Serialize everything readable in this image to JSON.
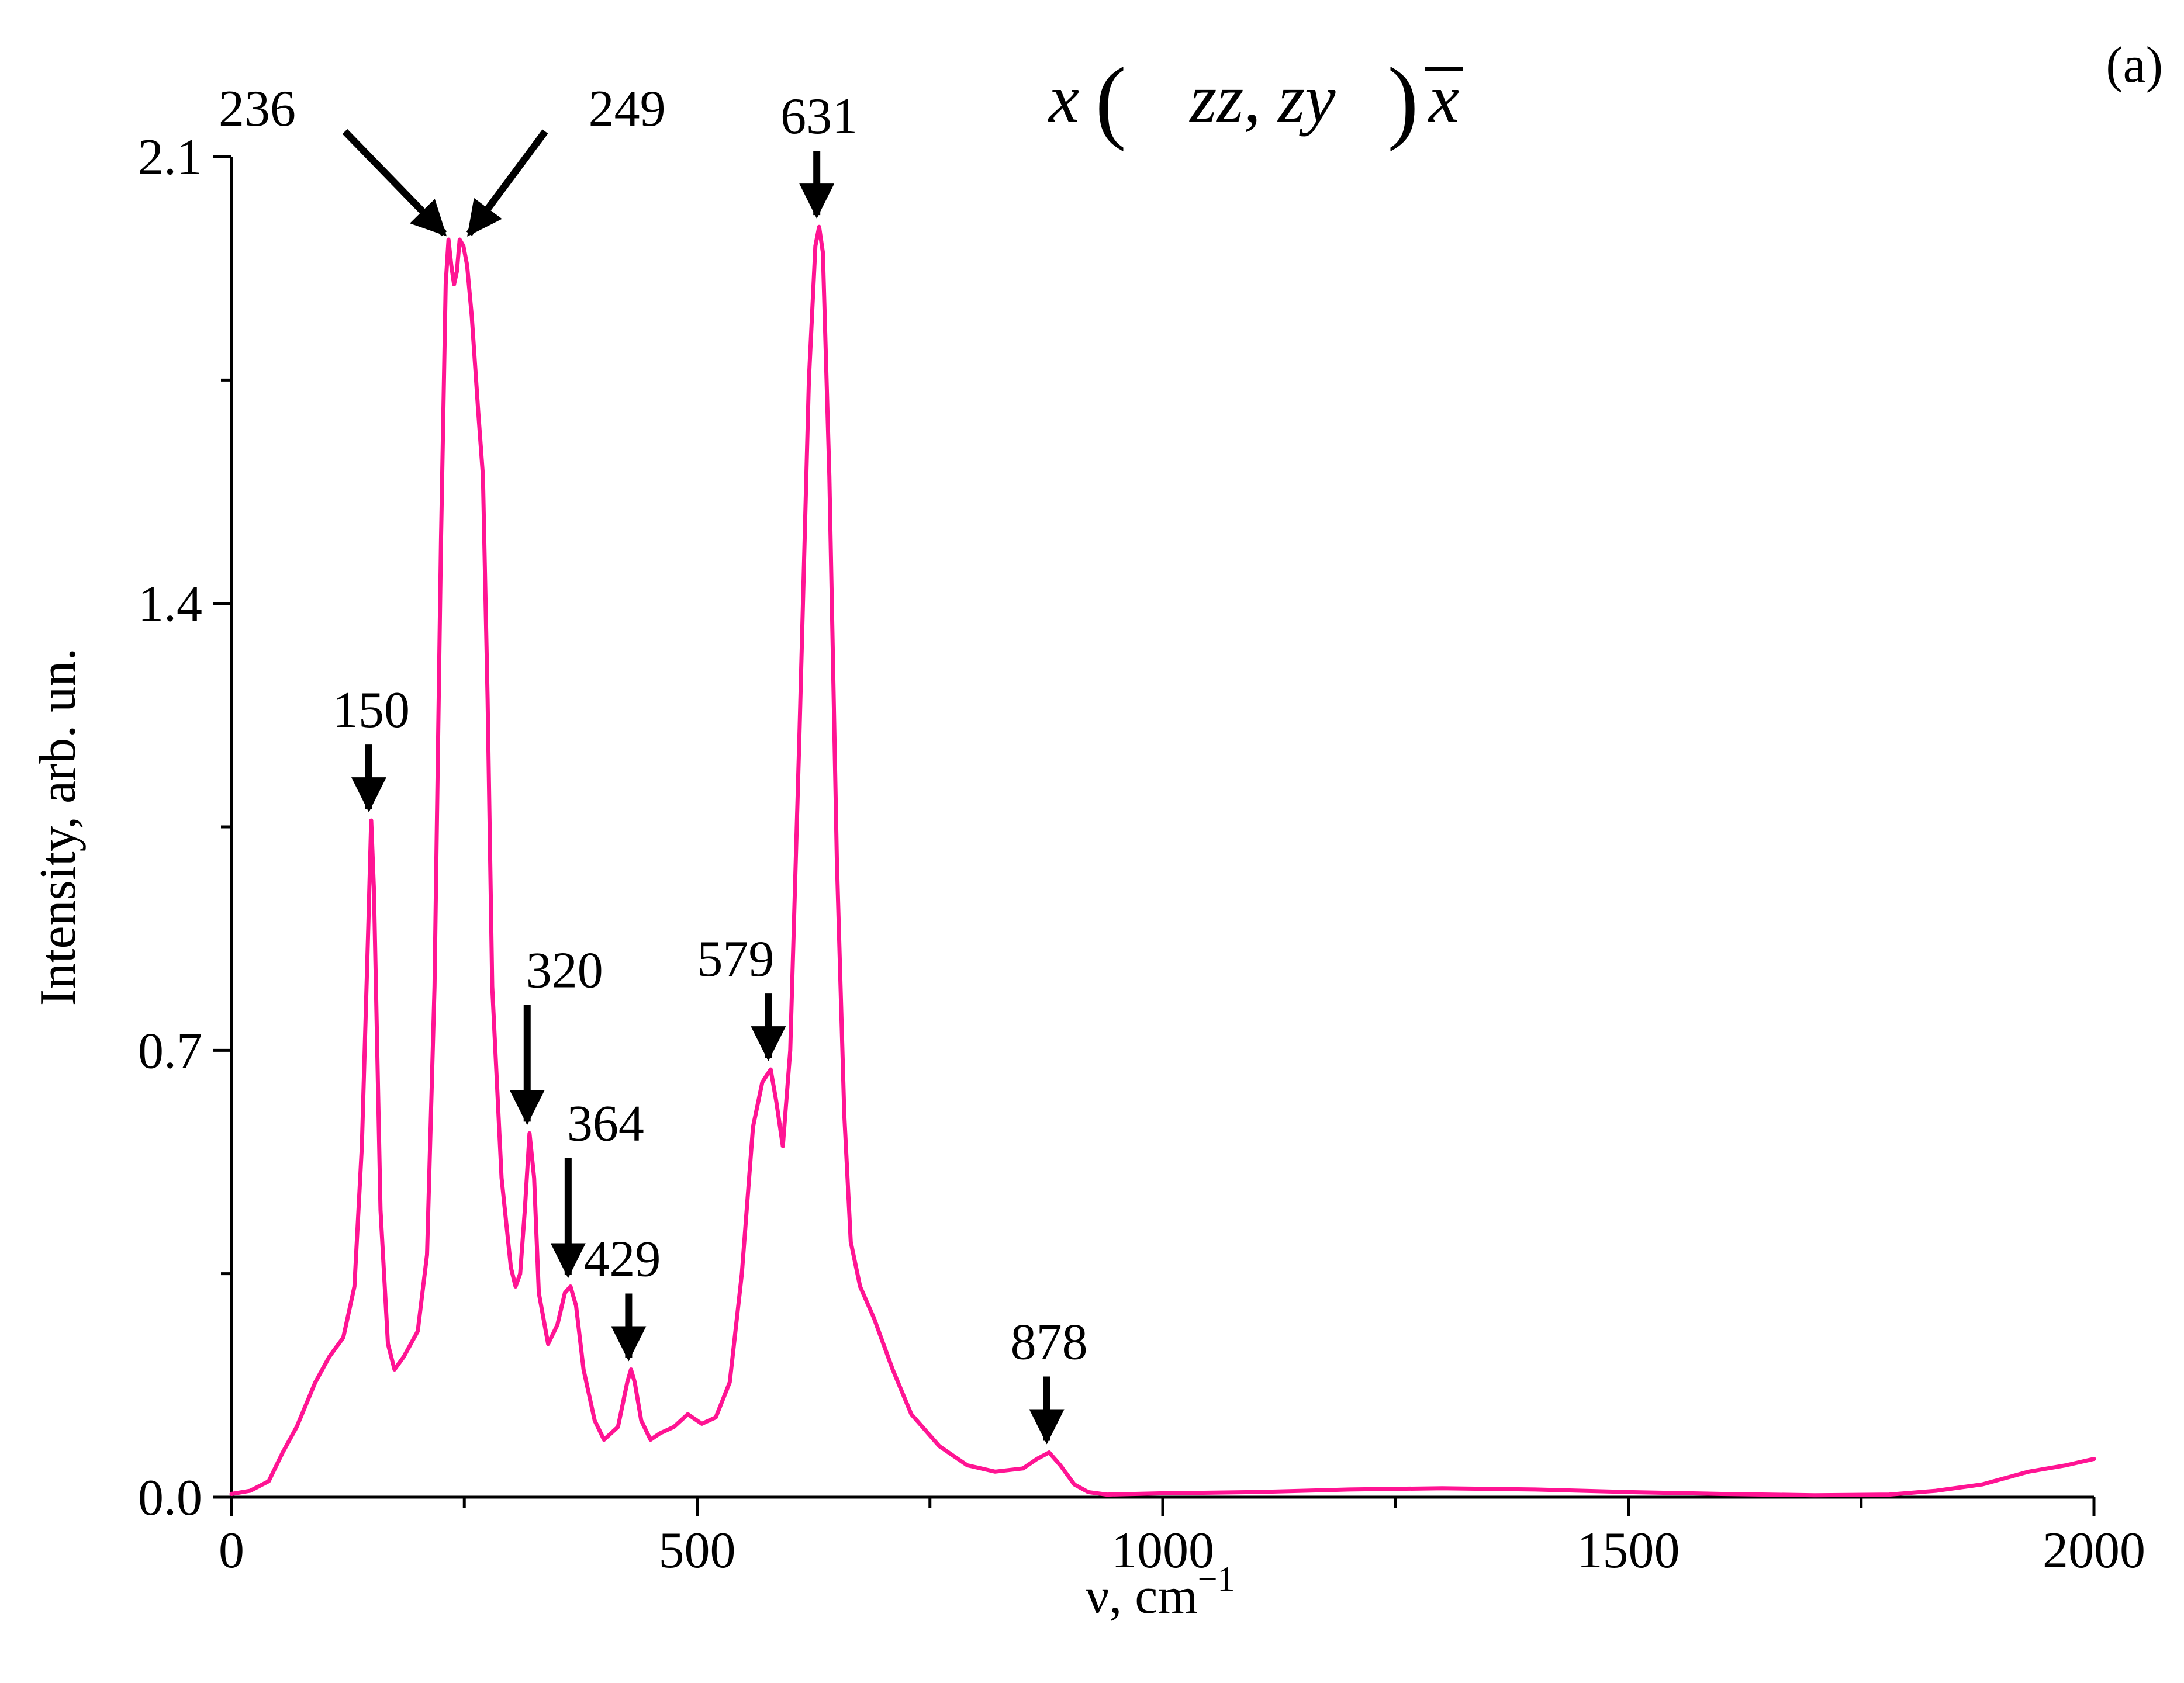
{
  "chart_data": {
    "type": "line",
    "title": "x(zz, zy)x",
    "title_parts": {
      "pre": "x",
      "open": "(",
      "mid": "zz, zy",
      "close": ")",
      "post": "x"
    },
    "panel_label": "(a)",
    "xlabel": "ν, cm",
    "xlabel_sup": "−1",
    "ylabel": "Intensity, arb. un.",
    "xlim": [
      0,
      2000
    ],
    "ylim": [
      0,
      2.1
    ],
    "xticks": [
      0,
      500,
      1000,
      1500,
      2000
    ],
    "xtick_labels": [
      "0",
      "500",
      "1000",
      "1500",
      "2000"
    ],
    "yticks": [
      0,
      0.7,
      1.4,
      2.1
    ],
    "ytick_labels": [
      "0.0",
      "0.7",
      "1.4",
      "2.1"
    ],
    "grid": false,
    "line_color": "#ff1493",
    "series": [
      {
        "x": [
          0,
          20,
          40,
          55,
          70,
          90,
          105,
          120,
          132,
          140,
          147,
          150,
          153,
          160,
          168,
          175,
          185,
          200,
          210,
          218,
          225,
          230,
          233,
          236,
          239,
          242,
          245,
          249,
          253,
          258,
          265,
          270,
          275,
          280,
          290,
          300,
          305,
          310,
          315,
          320,
          325,
          330,
          340,
          350,
          358,
          364,
          370,
          378,
          390,
          400,
          415,
          425,
          429,
          433,
          440,
          450,
          460,
          475,
          490,
          505,
          520,
          535,
          548,
          560,
          570,
          579,
          585,
          592,
          600,
          610,
          620,
          627,
          631,
          635,
          642,
          650,
          658,
          665,
          675,
          690,
          710,
          730,
          760,
          790,
          820,
          850,
          865,
          878,
          890,
          905,
          920,
          940,
          1000,
          1100,
          1200,
          1300,
          1400,
          1500,
          1600,
          1700,
          1780,
          1830,
          1880,
          1930,
          1970,
          2000
        ],
        "y": [
          0.005,
          0.01,
          0.025,
          0.07,
          0.11,
          0.18,
          0.22,
          0.25,
          0.33,
          0.55,
          0.9,
          1.06,
          0.95,
          0.45,
          0.24,
          0.2,
          0.22,
          0.26,
          0.38,
          0.8,
          1.5,
          1.9,
          1.97,
          1.93,
          1.9,
          1.92,
          1.97,
          1.96,
          1.93,
          1.85,
          1.7,
          1.6,
          1.25,
          0.8,
          0.5,
          0.36,
          0.33,
          0.35,
          0.45,
          0.57,
          0.5,
          0.32,
          0.24,
          0.27,
          0.32,
          0.33,
          0.3,
          0.2,
          0.12,
          0.09,
          0.11,
          0.18,
          0.2,
          0.18,
          0.12,
          0.09,
          0.1,
          0.11,
          0.13,
          0.115,
          0.125,
          0.18,
          0.35,
          0.58,
          0.65,
          0.67,
          0.62,
          0.55,
          0.7,
          1.2,
          1.75,
          1.96,
          1.99,
          1.95,
          1.6,
          1.0,
          0.6,
          0.4,
          0.33,
          0.28,
          0.2,
          0.13,
          0.08,
          0.05,
          0.04,
          0.045,
          0.06,
          0.07,
          0.05,
          0.02,
          0.008,
          0.004,
          0.006,
          0.008,
          0.012,
          0.014,
          0.012,
          0.008,
          0.005,
          0.003,
          0.004,
          0.01,
          0.02,
          0.04,
          0.05,
          0.06
        ]
      }
    ],
    "annotations": [
      {
        "label": "150",
        "x": 150,
        "y": 1.06
      },
      {
        "label": "236",
        "x": 236,
        "y": 1.97
      },
      {
        "label": "249",
        "x": 249,
        "y": 1.97
      },
      {
        "label": "320",
        "x": 320,
        "y": 0.57
      },
      {
        "label": "364",
        "x": 364,
        "y": 0.33
      },
      {
        "label": "429",
        "x": 429,
        "y": 0.2
      },
      {
        "label": "579",
        "x": 579,
        "y": 0.67
      },
      {
        "label": "631",
        "x": 631,
        "y": 1.99
      },
      {
        "label": "878",
        "x": 878,
        "y": 0.07
      }
    ]
  }
}
